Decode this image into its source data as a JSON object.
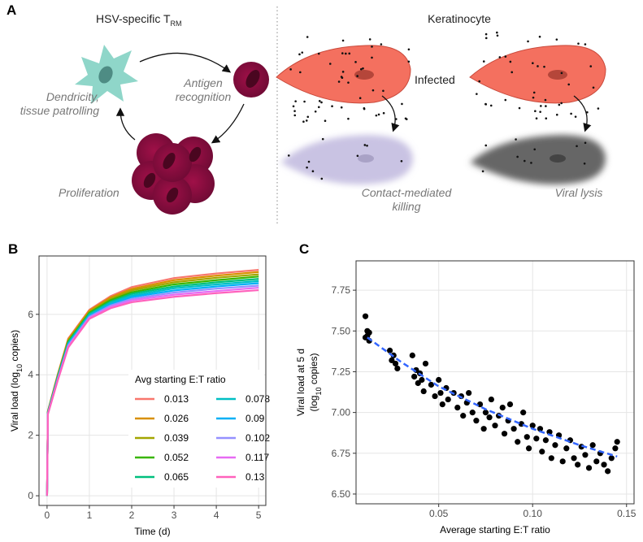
{
  "panel_a": {
    "label": "A",
    "title_main": "HSV-specific T",
    "title_sub": "RM",
    "keratinocyte": "Keratinocyte",
    "dendricity": [
      "Dendricity,",
      "tissue patrolling"
    ],
    "antigen": [
      "Antigen",
      "recognition"
    ],
    "proliferation": "Proliferation",
    "infected": "Infected",
    "contact": [
      "Contact-mediated",
      "killing"
    ],
    "lysis": "Viral lysis"
  },
  "chart_data": [
    {
      "type": "line",
      "panel_label": "B",
      "x_label": "Time (d)",
      "y_label": [
        "Viral load (log",
        "10",
        " copies)"
      ],
      "xlim": [
        -0.19,
        5.17
      ],
      "ylim": [
        -0.32,
        7.93
      ],
      "xticks": [
        0,
        1,
        2,
        3,
        4,
        5
      ],
      "yticks": [
        0,
        2,
        4,
        6
      ],
      "grid": true,
      "legend_title": "Avg starting E:T ratio",
      "legend_position": "bottom-right",
      "x": [
        0,
        0.02,
        0.25,
        0.5,
        1,
        1.5,
        2,
        3,
        4,
        5
      ],
      "series": [
        {
          "name": "0.013",
          "color": "#f8766d",
          "values": [
            0,
            2.8,
            4.0,
            5.2,
            6.15,
            6.6,
            6.9,
            7.2,
            7.35,
            7.47
          ]
        },
        {
          "name": "0.026",
          "color": "#d89000",
          "values": [
            0,
            2.79,
            3.98,
            5.17,
            6.12,
            6.56,
            6.84,
            7.13,
            7.28,
            7.4
          ]
        },
        {
          "name": "0.039",
          "color": "#a3a500",
          "values": [
            0,
            2.78,
            3.96,
            5.13,
            6.08,
            6.51,
            6.79,
            7.06,
            7.21,
            7.32
          ]
        },
        {
          "name": "0.052",
          "color": "#39b600",
          "values": [
            0,
            2.77,
            3.93,
            5.1,
            6.05,
            6.47,
            6.73,
            6.99,
            7.13,
            7.25
          ]
        },
        {
          "name": "0.065",
          "color": "#00bf7d",
          "values": [
            0,
            2.76,
            3.91,
            5.07,
            6.02,
            6.42,
            6.68,
            6.92,
            7.06,
            7.17
          ]
        },
        {
          "name": "0.078",
          "color": "#00bfc4",
          "values": [
            0,
            2.74,
            3.89,
            5.03,
            5.98,
            6.38,
            6.62,
            6.86,
            6.99,
            7.1
          ]
        },
        {
          "name": "0.09",
          "color": "#00b0f6",
          "values": [
            0,
            2.73,
            3.87,
            5.0,
            5.95,
            6.33,
            6.57,
            6.79,
            6.92,
            7.03
          ]
        },
        {
          "name": "0.102",
          "color": "#9590ff",
          "values": [
            0,
            2.72,
            3.84,
            4.97,
            5.92,
            6.29,
            6.51,
            6.72,
            6.85,
            6.95
          ]
        },
        {
          "name": "0.117",
          "color": "#e76bf3",
          "values": [
            0,
            2.71,
            3.82,
            4.93,
            5.88,
            6.24,
            6.46,
            6.65,
            6.77,
            6.88
          ]
        },
        {
          "name": "0.13",
          "color": "#ff62bc",
          "values": [
            0,
            2.7,
            3.8,
            4.9,
            5.85,
            6.2,
            6.4,
            6.58,
            6.7,
            6.8
          ]
        }
      ]
    },
    {
      "type": "scatter",
      "panel_label": "C",
      "x_label": "Average starting E:T ratio",
      "y_label": [
        "Viral load at 5 d"
      ],
      "y_label2": [
        "(log",
        "10",
        " copies)"
      ],
      "xlim": [
        0.006,
        0.154
      ],
      "ylim": [
        6.44,
        7.93
      ],
      "xticks": [
        0.05,
        {
          "value": 0.1,
          "label": "0.10"
        },
        0.15
      ],
      "yticks": [
        {
          "value": 6.5,
          "label": "6.50"
        },
        6.75,
        {
          "value": 7,
          "label": "7.00"
        },
        7.25,
        {
          "value": 7.5,
          "label": "7.50"
        },
        7.75
      ],
      "grid": true,
      "color": "#000000",
      "x": [
        0.011,
        0.011,
        0.012,
        0.012,
        0.013,
        0.013,
        0.024,
        0.025,
        0.026,
        0.027,
        0.028,
        0.036,
        0.037,
        0.038,
        0.039,
        0.04,
        0.041,
        0.042,
        0.043,
        0.046,
        0.048,
        0.05,
        0.051,
        0.052,
        0.054,
        0.055,
        0.058,
        0.06,
        0.062,
        0.063,
        0.065,
        0.066,
        0.068,
        0.07,
        0.072,
        0.074,
        0.075,
        0.077,
        0.078,
        0.08,
        0.082,
        0.084,
        0.085,
        0.087,
        0.088,
        0.09,
        0.092,
        0.094,
        0.095,
        0.097,
        0.098,
        0.1,
        0.102,
        0.104,
        0.105,
        0.107,
        0.109,
        0.11,
        0.112,
        0.114,
        0.116,
        0.118,
        0.12,
        0.122,
        0.124,
        0.126,
        0.128,
        0.13,
        0.132,
        0.134,
        0.136,
        0.138,
        0.14,
        0.142,
        0.144,
        0.145
      ],
      "values": [
        7.59,
        7.46,
        7.5,
        7.47,
        7.44,
        7.49,
        7.38,
        7.32,
        7.35,
        7.3,
        7.27,
        7.35,
        7.22,
        7.26,
        7.18,
        7.24,
        7.2,
        7.13,
        7.3,
        7.17,
        7.1,
        7.2,
        7.12,
        7.05,
        7.15,
        7.08,
        7.12,
        7.03,
        7.1,
        6.98,
        7.06,
        7.12,
        7.0,
        6.95,
        7.05,
        6.9,
        7.0,
        6.97,
        7.08,
        6.92,
        6.98,
        7.03,
        6.87,
        6.95,
        7.05,
        6.9,
        6.82,
        6.93,
        7.0,
        6.85,
        6.78,
        6.92,
        6.84,
        6.9,
        6.76,
        6.83,
        6.88,
        6.72,
        6.8,
        6.86,
        6.7,
        6.78,
        6.83,
        6.72,
        6.68,
        6.79,
        6.74,
        6.66,
        6.8,
        6.7,
        6.75,
        6.68,
        6.64,
        6.72,
        6.78,
        6.82
      ],
      "fit": {
        "color": "#3366ff",
        "x": [
          0.012,
          0.03,
          0.05,
          0.075,
          0.1,
          0.125,
          0.145
        ],
        "y": [
          7.46,
          7.31,
          7.16,
          7.02,
          6.9,
          6.8,
          6.73
        ]
      }
    }
  ]
}
